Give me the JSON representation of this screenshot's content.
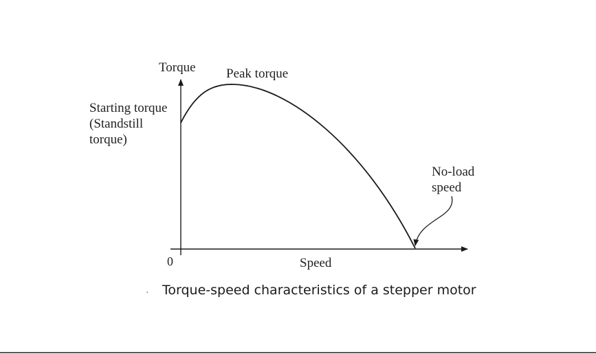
{
  "axes": {
    "y_label": "Torque",
    "x_label": "Speed",
    "origin_label": "0"
  },
  "annotations": {
    "peak": "Peak torque",
    "starting": [
      "Starting torque",
      "(Standstill",
      "torque)"
    ],
    "no_load": [
      "No-load",
      "speed"
    ]
  },
  "caption": {
    "bullet": "·",
    "text": "Torque-speed characteristics of a stepper motor"
  },
  "colors": {
    "line": "#1a1a1a",
    "text": "#222222"
  }
}
